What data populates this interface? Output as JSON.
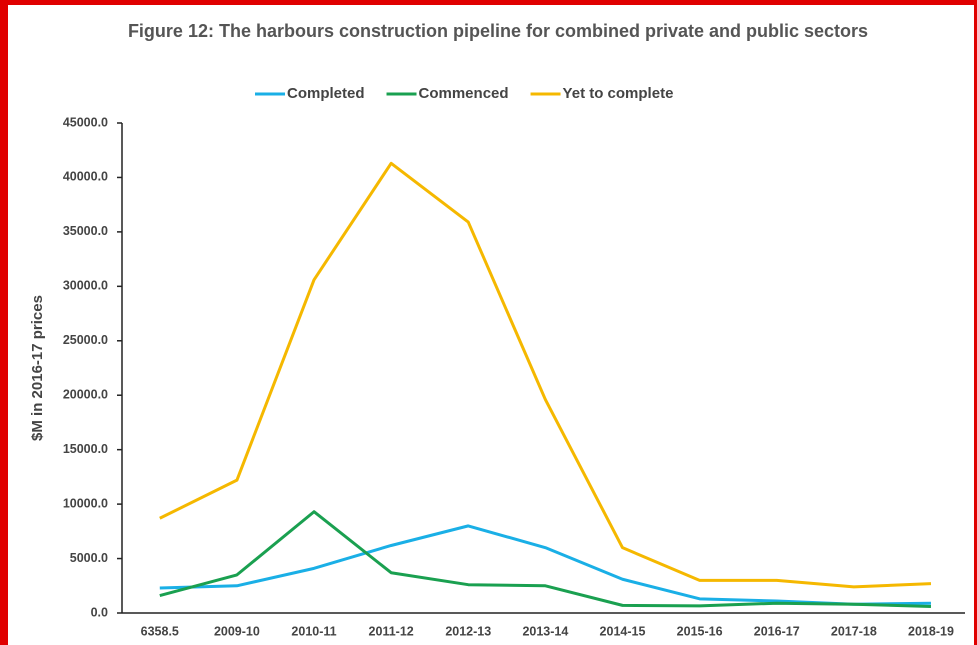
{
  "chart_data": {
    "type": "line",
    "title": "Figure 12: The harbours construction pipeline for combined private and public sectors",
    "y_label": "$M in 2016-17 prices",
    "categories": [
      "6358.5",
      "2009-10",
      "2010-11",
      "2011-12",
      "2012-13",
      "2013-14",
      "2014-15",
      "2015-16",
      "2016-17",
      "2017-18",
      "2018-19"
    ],
    "series": [
      {
        "name": "Completed",
        "color": "#1aafe6",
        "values": [
          2300,
          2500,
          4100,
          6200,
          8000,
          6000,
          3100,
          1300,
          1100,
          800,
          900
        ]
      },
      {
        "name": "Commenced",
        "color": "#1aa050",
        "values": [
          1600,
          3500,
          9300,
          3700,
          2600,
          2500,
          700,
          650,
          900,
          800,
          600
        ]
      },
      {
        "name": "Yet to complete",
        "color": "#f5b800",
        "values": [
          8700,
          12200,
          30600,
          41300,
          35900,
          19600,
          6000,
          3000,
          3000,
          2400,
          2700
        ]
      }
    ],
    "ylim": [
      0,
      45000
    ],
    "yticks": [
      {
        "value": 0,
        "label": "0.0"
      },
      {
        "value": 5000,
        "label": "5000.0"
      },
      {
        "value": 10000,
        "label": "10000.0"
      },
      {
        "value": 15000,
        "label": "15000.0"
      },
      {
        "value": 20000,
        "label": "20000.0"
      },
      {
        "value": 25000,
        "label": "25000.0"
      },
      {
        "value": 30000,
        "label": "30000.0"
      },
      {
        "value": 35000,
        "label": "35000.0"
      },
      {
        "value": 40000,
        "label": "40000.0"
      },
      {
        "value": 45000,
        "label": "45000.0"
      }
    ],
    "legend": "top",
    "grid": false
  }
}
